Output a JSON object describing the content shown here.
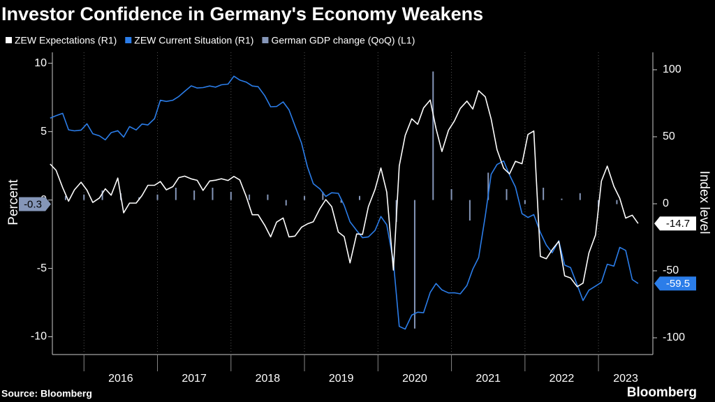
{
  "chart_data": {
    "type": "line",
    "title": "Investor Confidence in Germany's Economy Weakens",
    "ylabel": "Percent",
    "y2label": "Index level",
    "source": "Source: Bloomberg",
    "brand": "Bloomberg",
    "grid": true,
    "xlim": [
      2015.57,
      2023.74
    ],
    "xticks": [
      2016,
      2017,
      2018,
      2019,
      2020,
      2021,
      2022,
      2023
    ],
    "ylim": [
      -11.3,
      10.8
    ],
    "yticks": [
      -10,
      -5,
      0,
      5,
      10
    ],
    "y2lim": [
      -112.5,
      113
    ],
    "y2ticks": [
      -100,
      -50,
      0,
      50,
      100
    ],
    "x": [
      2015.54,
      2015.62,
      2015.71,
      2015.79,
      2015.87,
      2015.96,
      2016.04,
      2016.12,
      2016.21,
      2016.29,
      2016.37,
      2016.46,
      2016.54,
      2016.62,
      2016.71,
      2016.79,
      2016.87,
      2016.96,
      2017.04,
      2017.12,
      2017.21,
      2017.29,
      2017.37,
      2017.46,
      2017.54,
      2017.62,
      2017.71,
      2017.79,
      2017.87,
      2017.96,
      2018.04,
      2018.12,
      2018.21,
      2018.29,
      2018.37,
      2018.46,
      2018.54,
      2018.62,
      2018.71,
      2018.79,
      2018.87,
      2018.96,
      2019.04,
      2019.12,
      2019.21,
      2019.29,
      2019.37,
      2019.46,
      2019.54,
      2019.62,
      2019.71,
      2019.79,
      2019.87,
      2019.96,
      2020.04,
      2020.12,
      2020.21,
      2020.29,
      2020.37,
      2020.46,
      2020.54,
      2020.62,
      2020.71,
      2020.79,
      2020.87,
      2020.96,
      2021.04,
      2021.12,
      2021.21,
      2021.29,
      2021.37,
      2021.46,
      2021.54,
      2021.62,
      2021.71,
      2021.79,
      2021.87,
      2021.96,
      2022.04,
      2022.12,
      2022.21,
      2022.29,
      2022.37,
      2022.46,
      2022.54,
      2022.62,
      2022.71,
      2022.79,
      2022.87,
      2022.96,
      2023.04,
      2023.12,
      2023.21,
      2023.29,
      2023.37,
      2023.46,
      2023.54
    ],
    "series": [
      {
        "name": "ZEW Expectations (R1)",
        "color": "#ffffff",
        "type": "line",
        "axis": "y2",
        "values": [
          29.7,
          25.0,
          12.1,
          1.9,
          10.4,
          16.1,
          10.2,
          1.0,
          4.3,
          11.2,
          6.4,
          19.2,
          -6.8,
          0.5,
          0.5,
          6.2,
          13.8,
          13.8,
          16.6,
          10.4,
          12.8,
          19.5,
          20.6,
          18.6,
          17.5,
          10.0,
          17.0,
          17.6,
          18.7,
          17.4,
          20.4,
          17.8,
          5.1,
          -8.2,
          -8.2,
          -16.1,
          -24.7,
          -13.7,
          -10.6,
          -24.7,
          -24.1,
          -17.5,
          -15.0,
          -13.4,
          -3.6,
          3.1,
          -2.1,
          -21.1,
          -24.5,
          -44.1,
          -22.5,
          -22.8,
          -2.1,
          10.7,
          26.7,
          8.7,
          -49.5,
          28.2,
          51.0,
          63.4,
          59.3,
          71.5,
          77.4,
          56.1,
          39.0,
          55.0,
          61.8,
          71.2,
          76.6,
          70.7,
          84.4,
          79.8,
          63.3,
          40.4,
          26.5,
          22.3,
          31.7,
          29.9,
          51.7,
          54.3,
          -39.3,
          -41.0,
          -34.3,
          -28.0,
          -53.8,
          -55.3,
          -61.9,
          -59.2,
          -36.7,
          -23.3,
          16.9,
          28.1,
          13.0,
          4.1,
          -10.7,
          -8.5,
          -14.7
        ]
      },
      {
        "name": "ZEW Current Situation (R1)",
        "color": "#2b7de9",
        "type": "line",
        "axis": "y2",
        "values": [
          63.9,
          65.7,
          67.5,
          55.2,
          54.4,
          55.0,
          59.7,
          52.3,
          50.7,
          47.7,
          53.1,
          54.5,
          49.8,
          57.6,
          55.1,
          59.5,
          58.8,
          63.5,
          77.3,
          76.4,
          77.3,
          80.1,
          83.9,
          88.0,
          86.4,
          86.7,
          87.9,
          87.0,
          88.8,
          89.3,
          95.2,
          92.3,
          90.7,
          87.9,
          87.4,
          80.6,
          72.4,
          72.6,
          76.0,
          70.1,
          58.2,
          45.3,
          27.6,
          15.0,
          11.1,
          5.5,
          8.2,
          7.8,
          -1.1,
          -13.5,
          -19.9,
          -25.3,
          -24.7,
          -19.9,
          -9.5,
          -15.7,
          -43.1,
          -91.5,
          -93.5,
          -83.1,
          -80.9,
          -81.3,
          -66.2,
          -59.5,
          -64.3,
          -66.5,
          -66.4,
          -67.2,
          -61.0,
          -48.8,
          -40.1,
          -9.1,
          21.9,
          29.3,
          31.9,
          21.6,
          12.5,
          -7.4,
          -10.2,
          -8.1,
          -21.4,
          -30.8,
          -36.5,
          -27.6,
          -45.8,
          -47.6,
          -60.5,
          -72.2,
          -64.5,
          -61.4,
          -58.6,
          -45.1,
          -46.5,
          -32.5,
          -34.8,
          -56.5,
          -59.5
        ]
      },
      {
        "name": "German GDP change (QoQ) (L1)",
        "color": "#8596b8",
        "type": "bar",
        "axis": "y",
        "x": [
          2015.75,
          2016.0,
          2016.25,
          2016.5,
          2016.75,
          2017.0,
          2017.25,
          2017.5,
          2017.75,
          2018.0,
          2018.25,
          2018.5,
          2018.75,
          2019.0,
          2019.25,
          2019.5,
          2019.75,
          2020.0,
          2020.25,
          2020.5,
          2020.75,
          2021.0,
          2021.25,
          2021.5,
          2021.75,
          2022.0,
          2022.25,
          2022.5,
          2022.75,
          2023.0,
          2023.25
        ],
        "values": [
          0.3,
          0.4,
          0.7,
          0.5,
          0.2,
          0.4,
          0.9,
          0.7,
          0.9,
          0.6,
          0.4,
          0.4,
          -0.4,
          0.3,
          0.6,
          -0.2,
          0.3,
          0.0,
          -1.6,
          -9.4,
          9.4,
          0.8,
          -1.5,
          2.0,
          0.8,
          -0.3,
          0.9,
          0.1,
          0.5,
          -0.5,
          -0.3
        ]
      }
    ]
  }
}
